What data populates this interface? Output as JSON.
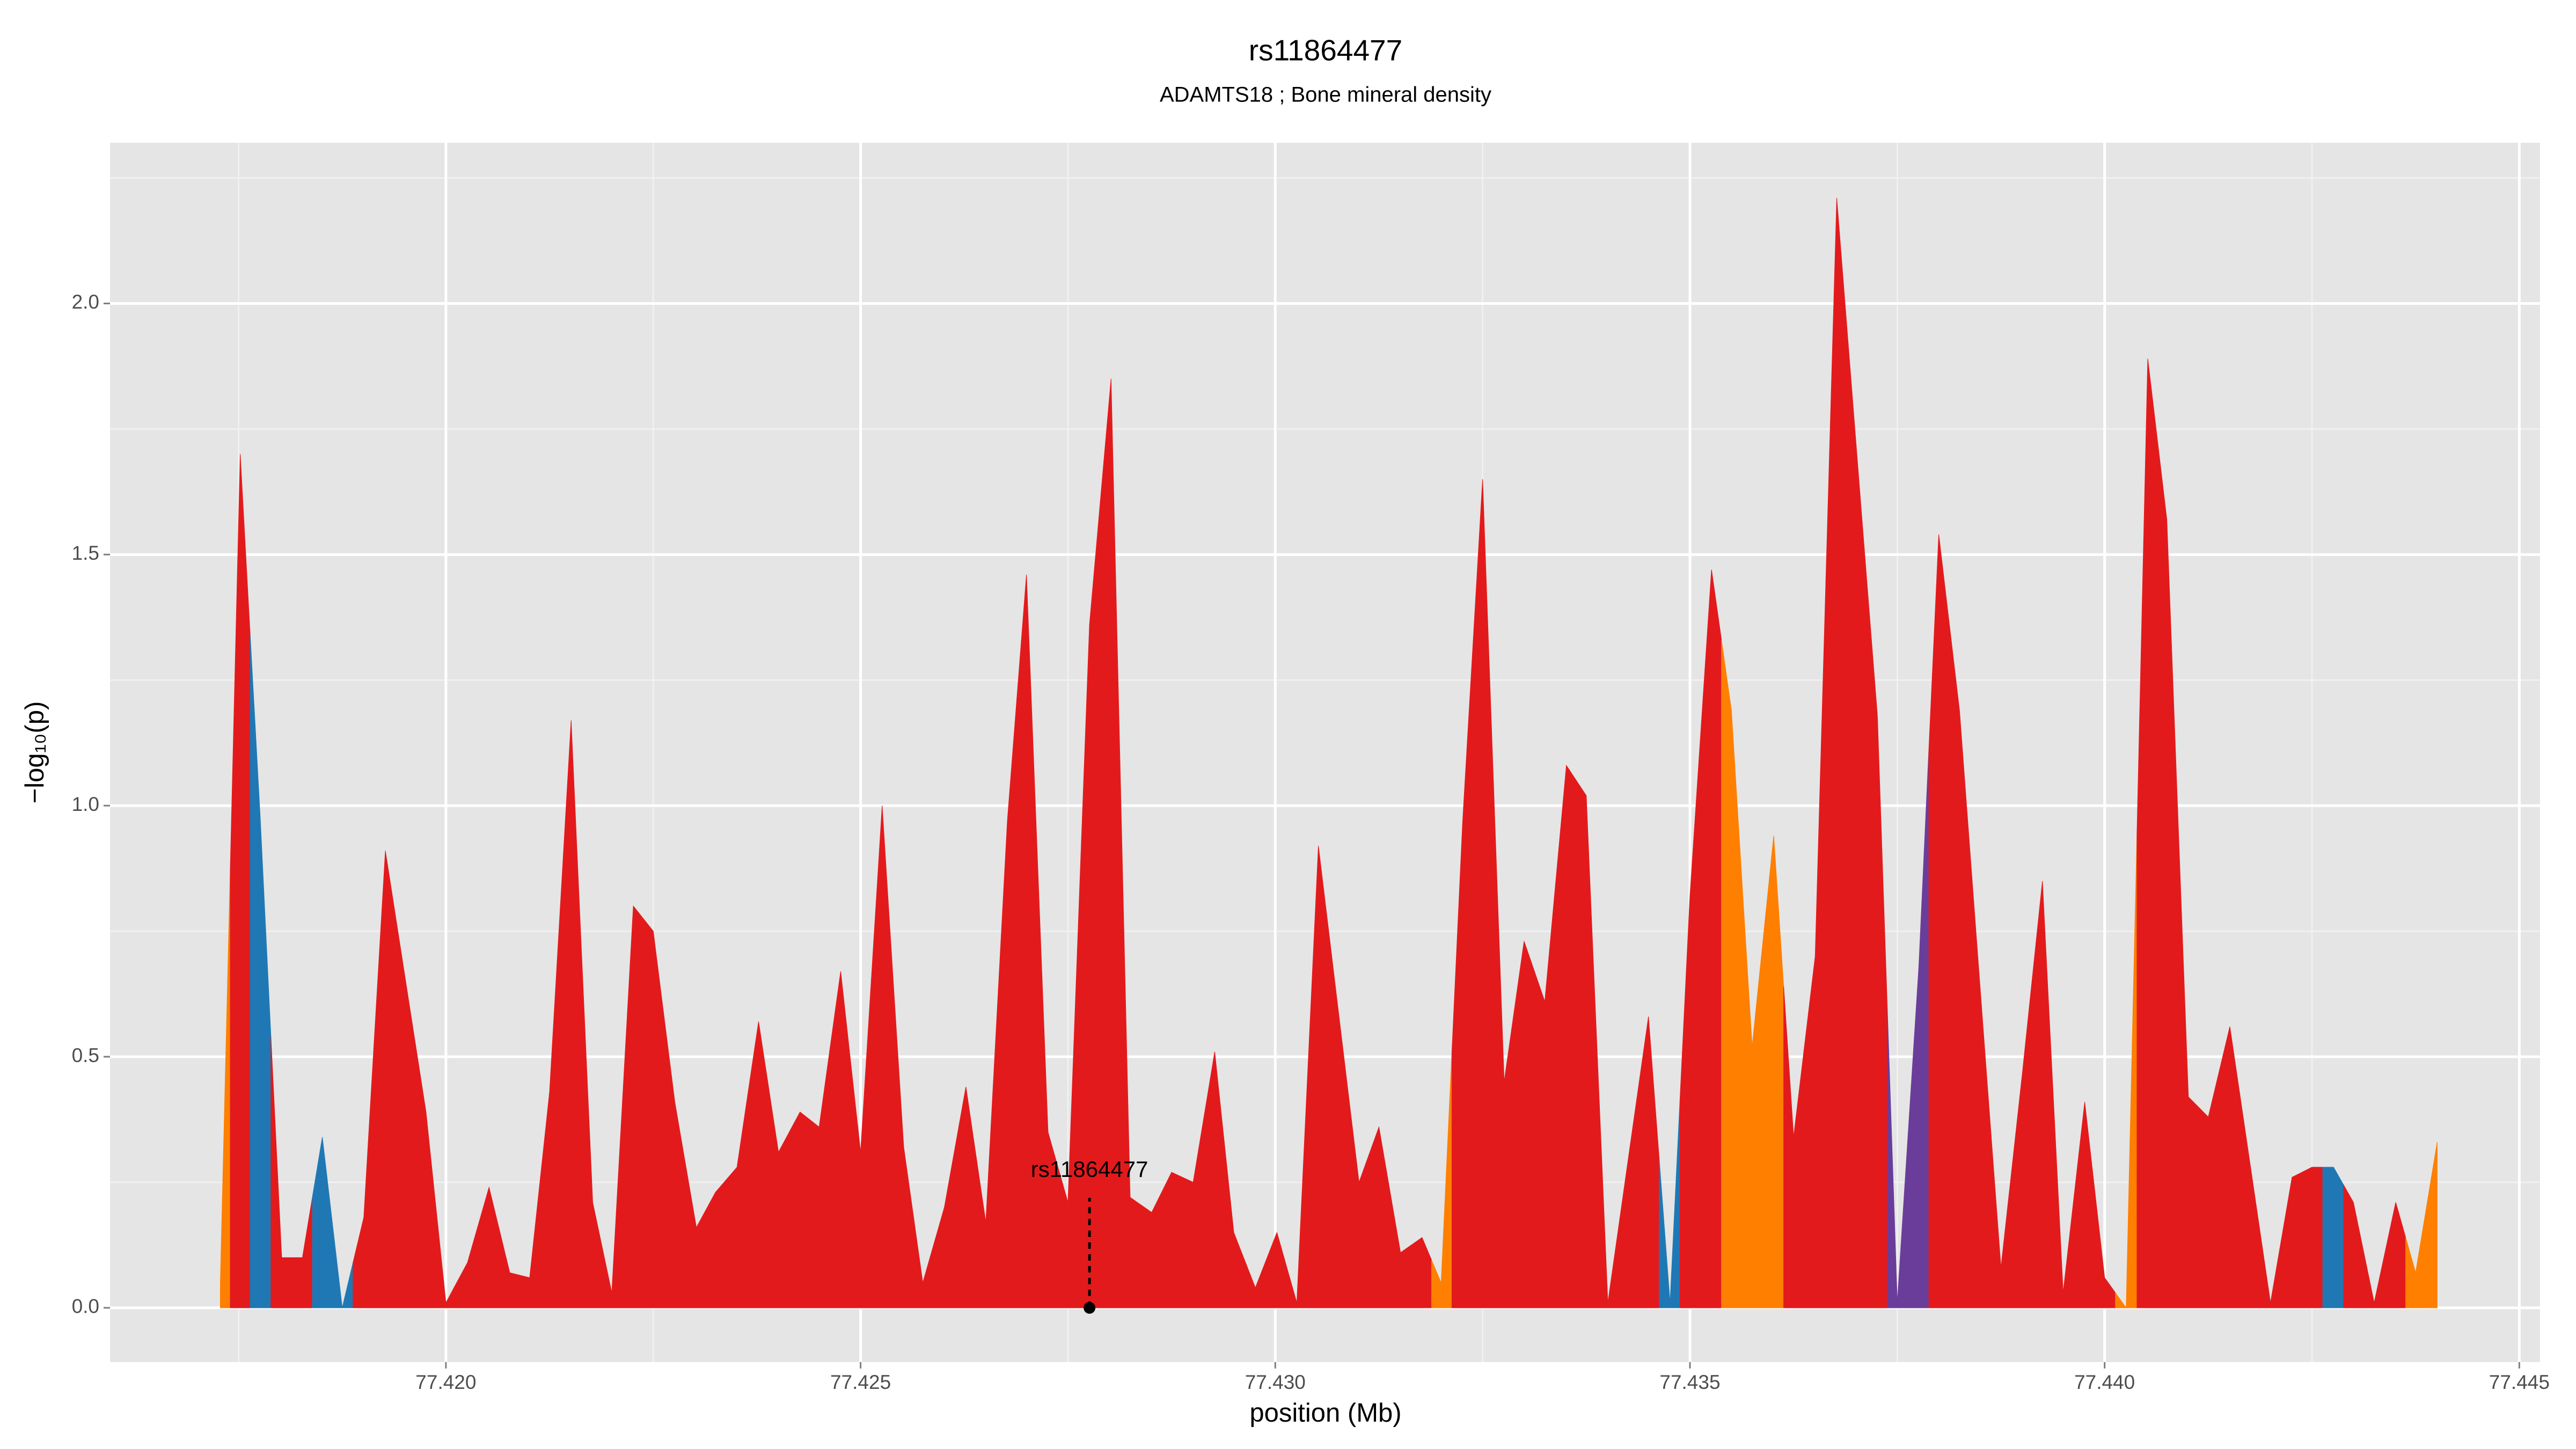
{
  "chart_data": {
    "type": "area",
    "title": "rs11864477",
    "subtitle": "ADAMTS18 ; Bone mineral density",
    "x_label": "position (Mb)",
    "y_label": "−log₁₀(p)",
    "xlim": [
      77.41595,
      77.44525
    ],
    "ylim": [
      -0.108,
      2.32
    ],
    "xticks": [
      {
        "value": 77.42,
        "label": "77.420"
      },
      {
        "value": 77.425,
        "label": "77.425"
      },
      {
        "value": 77.43,
        "label": "77.430"
      },
      {
        "value": 77.435,
        "label": "77.435"
      },
      {
        "value": 77.44,
        "label": "77.440"
      },
      {
        "value": 77.445,
        "label": "77.445"
      }
    ],
    "yticks": [
      {
        "value": 0,
        "label": "0.0"
      },
      {
        "value": 0.5,
        "label": "0.5"
      },
      {
        "value": 1,
        "label": "1.0"
      },
      {
        "value": 1.5,
        "label": "1.5"
      },
      {
        "value": 2,
        "label": "2.0"
      }
    ],
    "grid": true,
    "x": [
      77.41728,
      77.41752,
      77.41776,
      77.41802,
      77.41827,
      77.41851,
      77.41875,
      77.41901,
      77.41927,
      77.41976,
      77.42,
      77.42026,
      77.42052,
      77.42077,
      77.42101,
      77.42125,
      77.42151,
      77.42177,
      77.422,
      77.42226,
      77.4225,
      77.42276,
      77.42302,
      77.42325,
      77.42351,
      77.42377,
      77.42401,
      77.42427,
      77.4245,
      77.42476,
      77.425,
      77.42526,
      77.42552,
      77.42575,
      77.42601,
      77.42627,
      77.42651,
      77.42677,
      77.427,
      77.42726,
      77.4275,
      77.42776,
      77.42802,
      77.42825,
      77.42851,
      77.42875,
      77.42901,
      77.42927,
      77.4295,
      77.42976,
      77.43002,
      77.43026,
      77.43052,
      77.43101,
      77.43125,
      77.43151,
      77.43177,
      77.432,
      77.43226,
      77.4325,
      77.43276,
      77.433,
      77.43325,
      77.43351,
      77.43375,
      77.43401,
      77.4345,
      77.43476,
      77.435,
      77.43526,
      77.4355,
      77.43575,
      77.43601,
      77.43625,
      77.43651,
      77.43677,
      77.43726,
      77.4375,
      77.43776,
      77.438,
      77.43825,
      77.43875,
      77.43901,
      77.43925,
      77.4395,
      77.43976,
      77.44,
      77.44026,
      77.44052,
      77.44075,
      77.44101,
      77.44125,
      77.44151,
      77.442,
      77.44226,
      77.4425,
      77.44276,
      77.443,
      77.44325,
      77.44351,
      77.44375,
      77.44401
    ],
    "series": [
      {
        "values": [
          0.05,
          1.7,
          0.98,
          0.1,
          0.1,
          0.34,
          0.0,
          0.18,
          0.91,
          0.39,
          0.01,
          0.09,
          0.24,
          0.07,
          0.06,
          0.43,
          1.17,
          0.21,
          0.03,
          0.8,
          0.75,
          0.41,
          0.16,
          0.23,
          0.28,
          0.57,
          0.31,
          0.39,
          0.36,
          0.67,
          0.31,
          1.0,
          0.32,
          0.05,
          0.2,
          0.44,
          0.17,
          0.97,
          1.46,
          0.35,
          0.21,
          1.36,
          1.85,
          0.22,
          0.19,
          0.27,
          0.25,
          0.51,
          0.15,
          0.04,
          0.15,
          0.01,
          0.92,
          0.25,
          0.36,
          0.11,
          0.14,
          0.05,
          0.97,
          1.65,
          0.45,
          0.73,
          0.61,
          1.08,
          1.02,
          0.01,
          0.58,
          0.01,
          0.82,
          1.47,
          1.19,
          0.52,
          0.94,
          0.34,
          0.7,
          2.21,
          1.18,
          0.01,
          0.68,
          1.54,
          1.19,
          0.08,
          0.47,
          0.85,
          0.03,
          0.41,
          0.06,
          0.0,
          1.89,
          1.57,
          0.42,
          0.38,
          0.56,
          0.01,
          0.26,
          0.28,
          0.28,
          0.21,
          0.01,
          0.21,
          0.07,
          0.33
        ],
        "colors": [
          "#ff7f00",
          "#e31a1c",
          "#1f78b4",
          "#e31a1c",
          "#e31a1c",
          "#1f78b4",
          "#1f78b4",
          "#e31a1c",
          "#e31a1c",
          "#e31a1c",
          "#e31a1c",
          "#e31a1c",
          "#e31a1c",
          "#e31a1c",
          "#e31a1c",
          "#e31a1c",
          "#e31a1c",
          "#e31a1c",
          "#e31a1c",
          "#e31a1c",
          "#e31a1c",
          "#e31a1c",
          "#e31a1c",
          "#e31a1c",
          "#e31a1c",
          "#e31a1c",
          "#e31a1c",
          "#e31a1c",
          "#e31a1c",
          "#e31a1c",
          "#e31a1c",
          "#e31a1c",
          "#e31a1c",
          "#e31a1c",
          "#e31a1c",
          "#e31a1c",
          "#e31a1c",
          "#e31a1c",
          "#e31a1c",
          "#e31a1c",
          "#e31a1c",
          "#e31a1c",
          "#e31a1c",
          "#e31a1c",
          "#e31a1c",
          "#e31a1c",
          "#e31a1c",
          "#e31a1c",
          "#e31a1c",
          "#e31a1c",
          "#e31a1c",
          "#e31a1c",
          "#e31a1c",
          "#e31a1c",
          "#e31a1c",
          "#e31a1c",
          "#e31a1c",
          "#ff7f00",
          "#e31a1c",
          "#e31a1c",
          "#e31a1c",
          "#e31a1c",
          "#e31a1c",
          "#e31a1c",
          "#e31a1c",
          "#e31a1c",
          "#e31a1c",
          "#1f78b4",
          "#e31a1c",
          "#e31a1c",
          "#ff7f00",
          "#ff7f00",
          "#ff7f00",
          "#e31a1c",
          "#e31a1c",
          "#e31a1c",
          "#e31a1c",
          "#6a3d9a",
          "#6a3d9a",
          "#e31a1c",
          "#e31a1c",
          "#e31a1c",
          "#e31a1c",
          "#e31a1c",
          "#e31a1c",
          "#e31a1c",
          "#e31a1c",
          "#ff7f00",
          "#e31a1c",
          "#e31a1c",
          "#e31a1c",
          "#e31a1c",
          "#e31a1c",
          "#e31a1c",
          "#e31a1c",
          "#e31a1c",
          "#1f78b4",
          "#e31a1c",
          "#e31a1c",
          "#e31a1c",
          "#ff7f00",
          "#ff7f00"
        ]
      }
    ],
    "annotation": {
      "text": "rs11864477",
      "x": 77.42776,
      "y": 0
    }
  }
}
